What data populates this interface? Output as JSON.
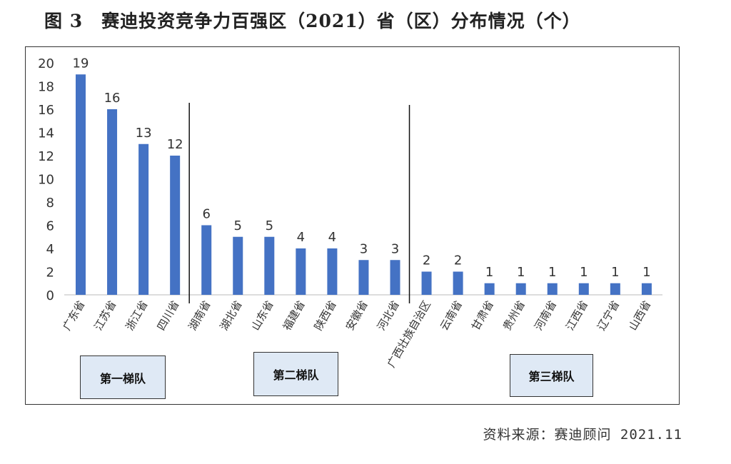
{
  "title": "图 3　赛迪投资竞争力百强区（2021）省（区）分布情况（个）",
  "source": "资料来源：赛迪顾问  2021.11",
  "tiers": [
    "第一梯队",
    "第二梯队",
    "第三梯队"
  ],
  "chart_data": {
    "type": "bar",
    "title": "图 3　赛迪投资竞争力百强区（2021）省（区）分布情况（个）",
    "categories": [
      "广东省",
      "江苏省",
      "浙江省",
      "四川省",
      "湖南省",
      "湖北省",
      "山东省",
      "福建省",
      "陕西省",
      "安徽省",
      "河北省",
      "广西壮族自治区",
      "云南省",
      "甘肃省",
      "贵州省",
      "河南省",
      "江西省",
      "辽宁省",
      "山西省"
    ],
    "values": [
      19,
      16,
      13,
      12,
      6,
      5,
      5,
      4,
      4,
      3,
      3,
      2,
      2,
      1,
      1,
      1,
      1,
      1,
      1
    ],
    "ylim": [
      0,
      20
    ],
    "yticks": [
      0,
      2,
      4,
      6,
      8,
      10,
      12,
      14,
      16,
      18,
      20
    ],
    "grid": false,
    "bar_color": "#4472C4",
    "data_labels": true,
    "groups": [
      {
        "label": "第一梯队",
        "categories": 4
      },
      {
        "label": "第二梯队",
        "categories": 7
      },
      {
        "label": "第三梯队",
        "categories": 8
      }
    ]
  }
}
